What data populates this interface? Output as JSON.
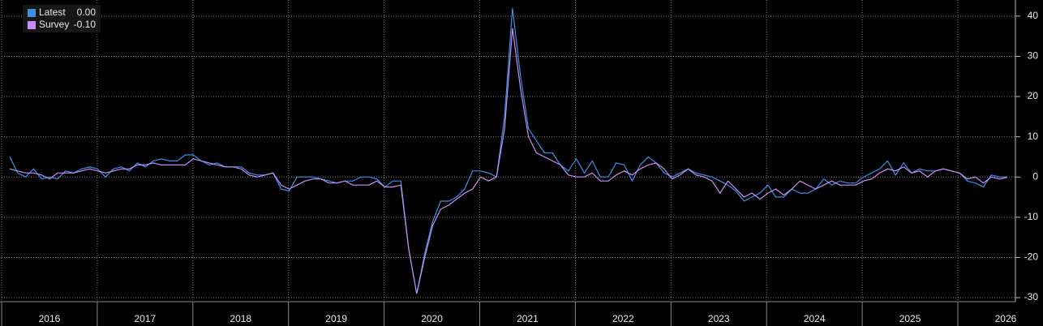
{
  "chart_data": {
    "type": "line",
    "year_labels": [
      "2016",
      "2017",
      "2018",
      "2019",
      "2020",
      "2021",
      "2022",
      "2023",
      "2024",
      "2025",
      "2026"
    ],
    "series": [
      {
        "name": "Latest",
        "last_label": "0.00",
        "color": "#3a8fe6",
        "values": [
          5,
          1,
          0,
          2,
          -0.5,
          0,
          -0.5,
          1.5,
          1,
          2,
          2.5,
          2,
          0,
          2,
          2.5,
          1.5,
          3.5,
          2.5,
          4,
          4.5,
          4,
          4,
          5.5,
          5.5,
          4,
          3,
          3.5,
          2.5,
          2.5,
          2.5,
          1,
          0.5,
          0.5,
          1,
          -3,
          -3.5,
          0,
          0,
          0,
          -0.5,
          -1,
          -1.5,
          -1,
          -1,
          0,
          0,
          -0.5,
          -2.5,
          -1,
          -1,
          -18,
          -29,
          -19,
          -11,
          -6,
          -6,
          -5,
          -3,
          1.5,
          1.5,
          1,
          0,
          15,
          42,
          25,
          12,
          9,
          6,
          6,
          3,
          1.5,
          4.5,
          1,
          4,
          0,
          0,
          3.5,
          3,
          -1,
          3,
          5,
          3.5,
          1,
          0,
          1,
          2,
          1,
          0.5,
          0,
          -1,
          -2,
          -3.5,
          -6,
          -5,
          -4,
          -2,
          -5,
          -5,
          -3,
          -4,
          -4,
          -3,
          -0.5,
          -2,
          -1,
          -1.5,
          -1.5,
          0,
          1,
          2,
          4,
          0.5,
          3.5,
          1,
          2,
          1.5,
          1.5,
          2,
          1.5,
          1,
          -1,
          -1.5,
          -2.5,
          0.5,
          0,
          0
        ]
      },
      {
        "name": "Survey",
        "last_label": "-0.10",
        "color": "#c98cf5",
        "values": [
          2,
          1.5,
          1,
          1,
          0.5,
          -0.5,
          1,
          1,
          1,
          1.5,
          2,
          1.5,
          1,
          1.5,
          2,
          2,
          3,
          3,
          3.5,
          3,
          3,
          3,
          3,
          4.5,
          4,
          3.5,
          3,
          2.5,
          2.5,
          2,
          0.5,
          0,
          0.5,
          1,
          -2,
          -3,
          -2,
          -1,
          -0.5,
          -0.5,
          -1.5,
          -1.5,
          -1,
          -2,
          -2,
          -2,
          -1,
          -2.5,
          -2.5,
          -2,
          -18,
          -29,
          -20,
          -12,
          -8,
          -7,
          -5.5,
          -4,
          -3,
          0,
          -1,
          0,
          12,
          37,
          22,
          10,
          6,
          5,
          4,
          3,
          0.5,
          0,
          0,
          1,
          -1,
          -1,
          0.5,
          1.5,
          0.5,
          2,
          3,
          3.5,
          2,
          -0.5,
          0.5,
          2,
          0.5,
          0,
          -1,
          -4,
          -1,
          -3,
          -5,
          -4,
          -5.5,
          -4,
          -3,
          -4.5,
          -3,
          -1,
          -2,
          -3,
          -2,
          -1,
          -2,
          -2,
          -2,
          -1,
          -0.5,
          1,
          2,
          1.5,
          2.5,
          1,
          1.5,
          0,
          1.5,
          2,
          1.5,
          1,
          -0.5,
          0,
          -1.5,
          0,
          -0.5,
          -0.1
        ]
      }
    ],
    "ylim": [
      -31,
      44
    ],
    "yticks": [
      -30,
      -20,
      -10,
      0,
      10,
      20,
      30,
      40
    ],
    "grid": true,
    "legend": "top-left"
  }
}
